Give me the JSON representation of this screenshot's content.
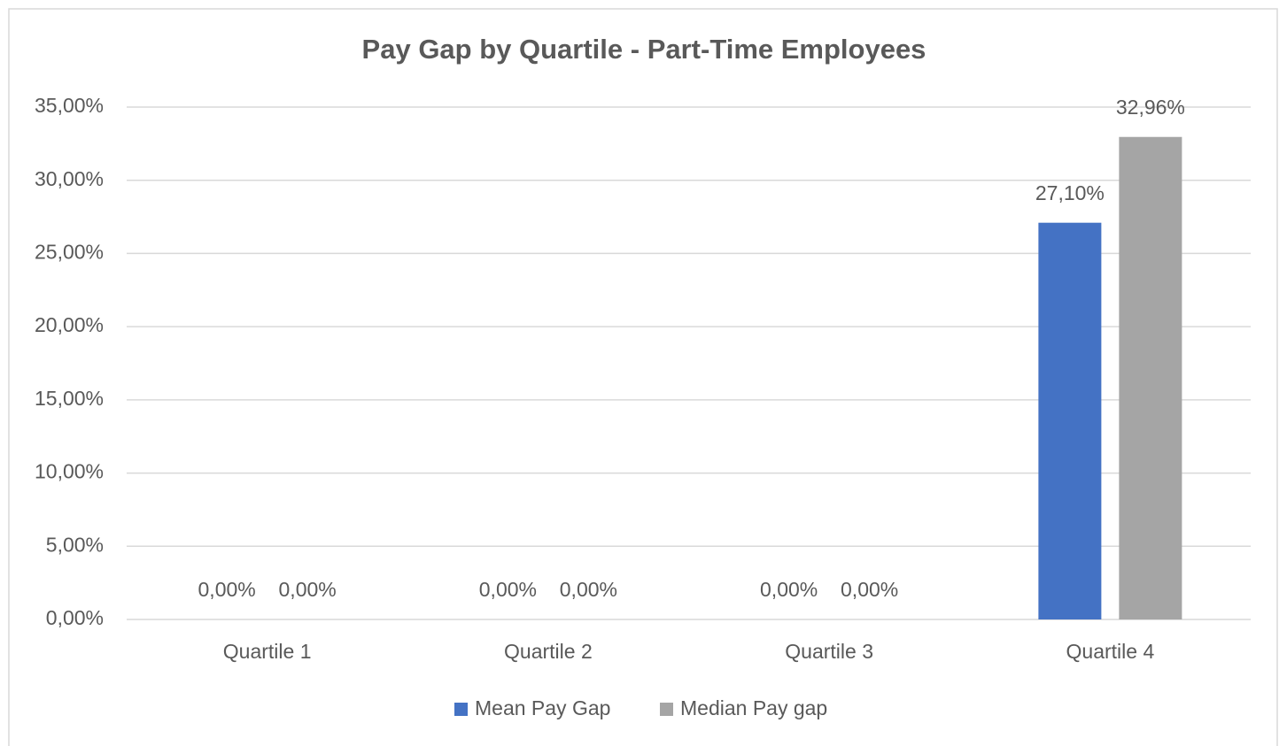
{
  "chart_data": {
    "type": "bar",
    "title": "Pay Gap by Quartile - Part-Time Employees",
    "categories": [
      "Quartile 1",
      "Quartile 2",
      "Quartile 3",
      "Quartile 4"
    ],
    "series": [
      {
        "name": "Mean Pay Gap",
        "color": "#4472c4",
        "values": [
          0,
          0,
          0,
          27.1
        ],
        "value_labels": [
          "0,00%",
          "0,00%",
          "0,00%",
          "27,10%"
        ]
      },
      {
        "name": "Median Pay gap",
        "color": "#a5a5a5",
        "values": [
          0,
          0,
          0,
          32.96
        ],
        "value_labels": [
          "0,00%",
          "0,00%",
          "0,00%",
          "32,96%"
        ]
      }
    ],
    "ylim": [
      0,
      35
    ],
    "yticks": [
      {
        "value": 0,
        "label": "0,00%"
      },
      {
        "value": 5,
        "label": "5,00%"
      },
      {
        "value": 10,
        "label": "10,00%"
      },
      {
        "value": 15,
        "label": "15,00%"
      },
      {
        "value": 20,
        "label": "20,00%"
      },
      {
        "value": 25,
        "label": "25,00%"
      },
      {
        "value": 30,
        "label": "30,00%"
      },
      {
        "value": 35,
        "label": "35,00%"
      }
    ],
    "grid": true,
    "legend": "bottom"
  }
}
